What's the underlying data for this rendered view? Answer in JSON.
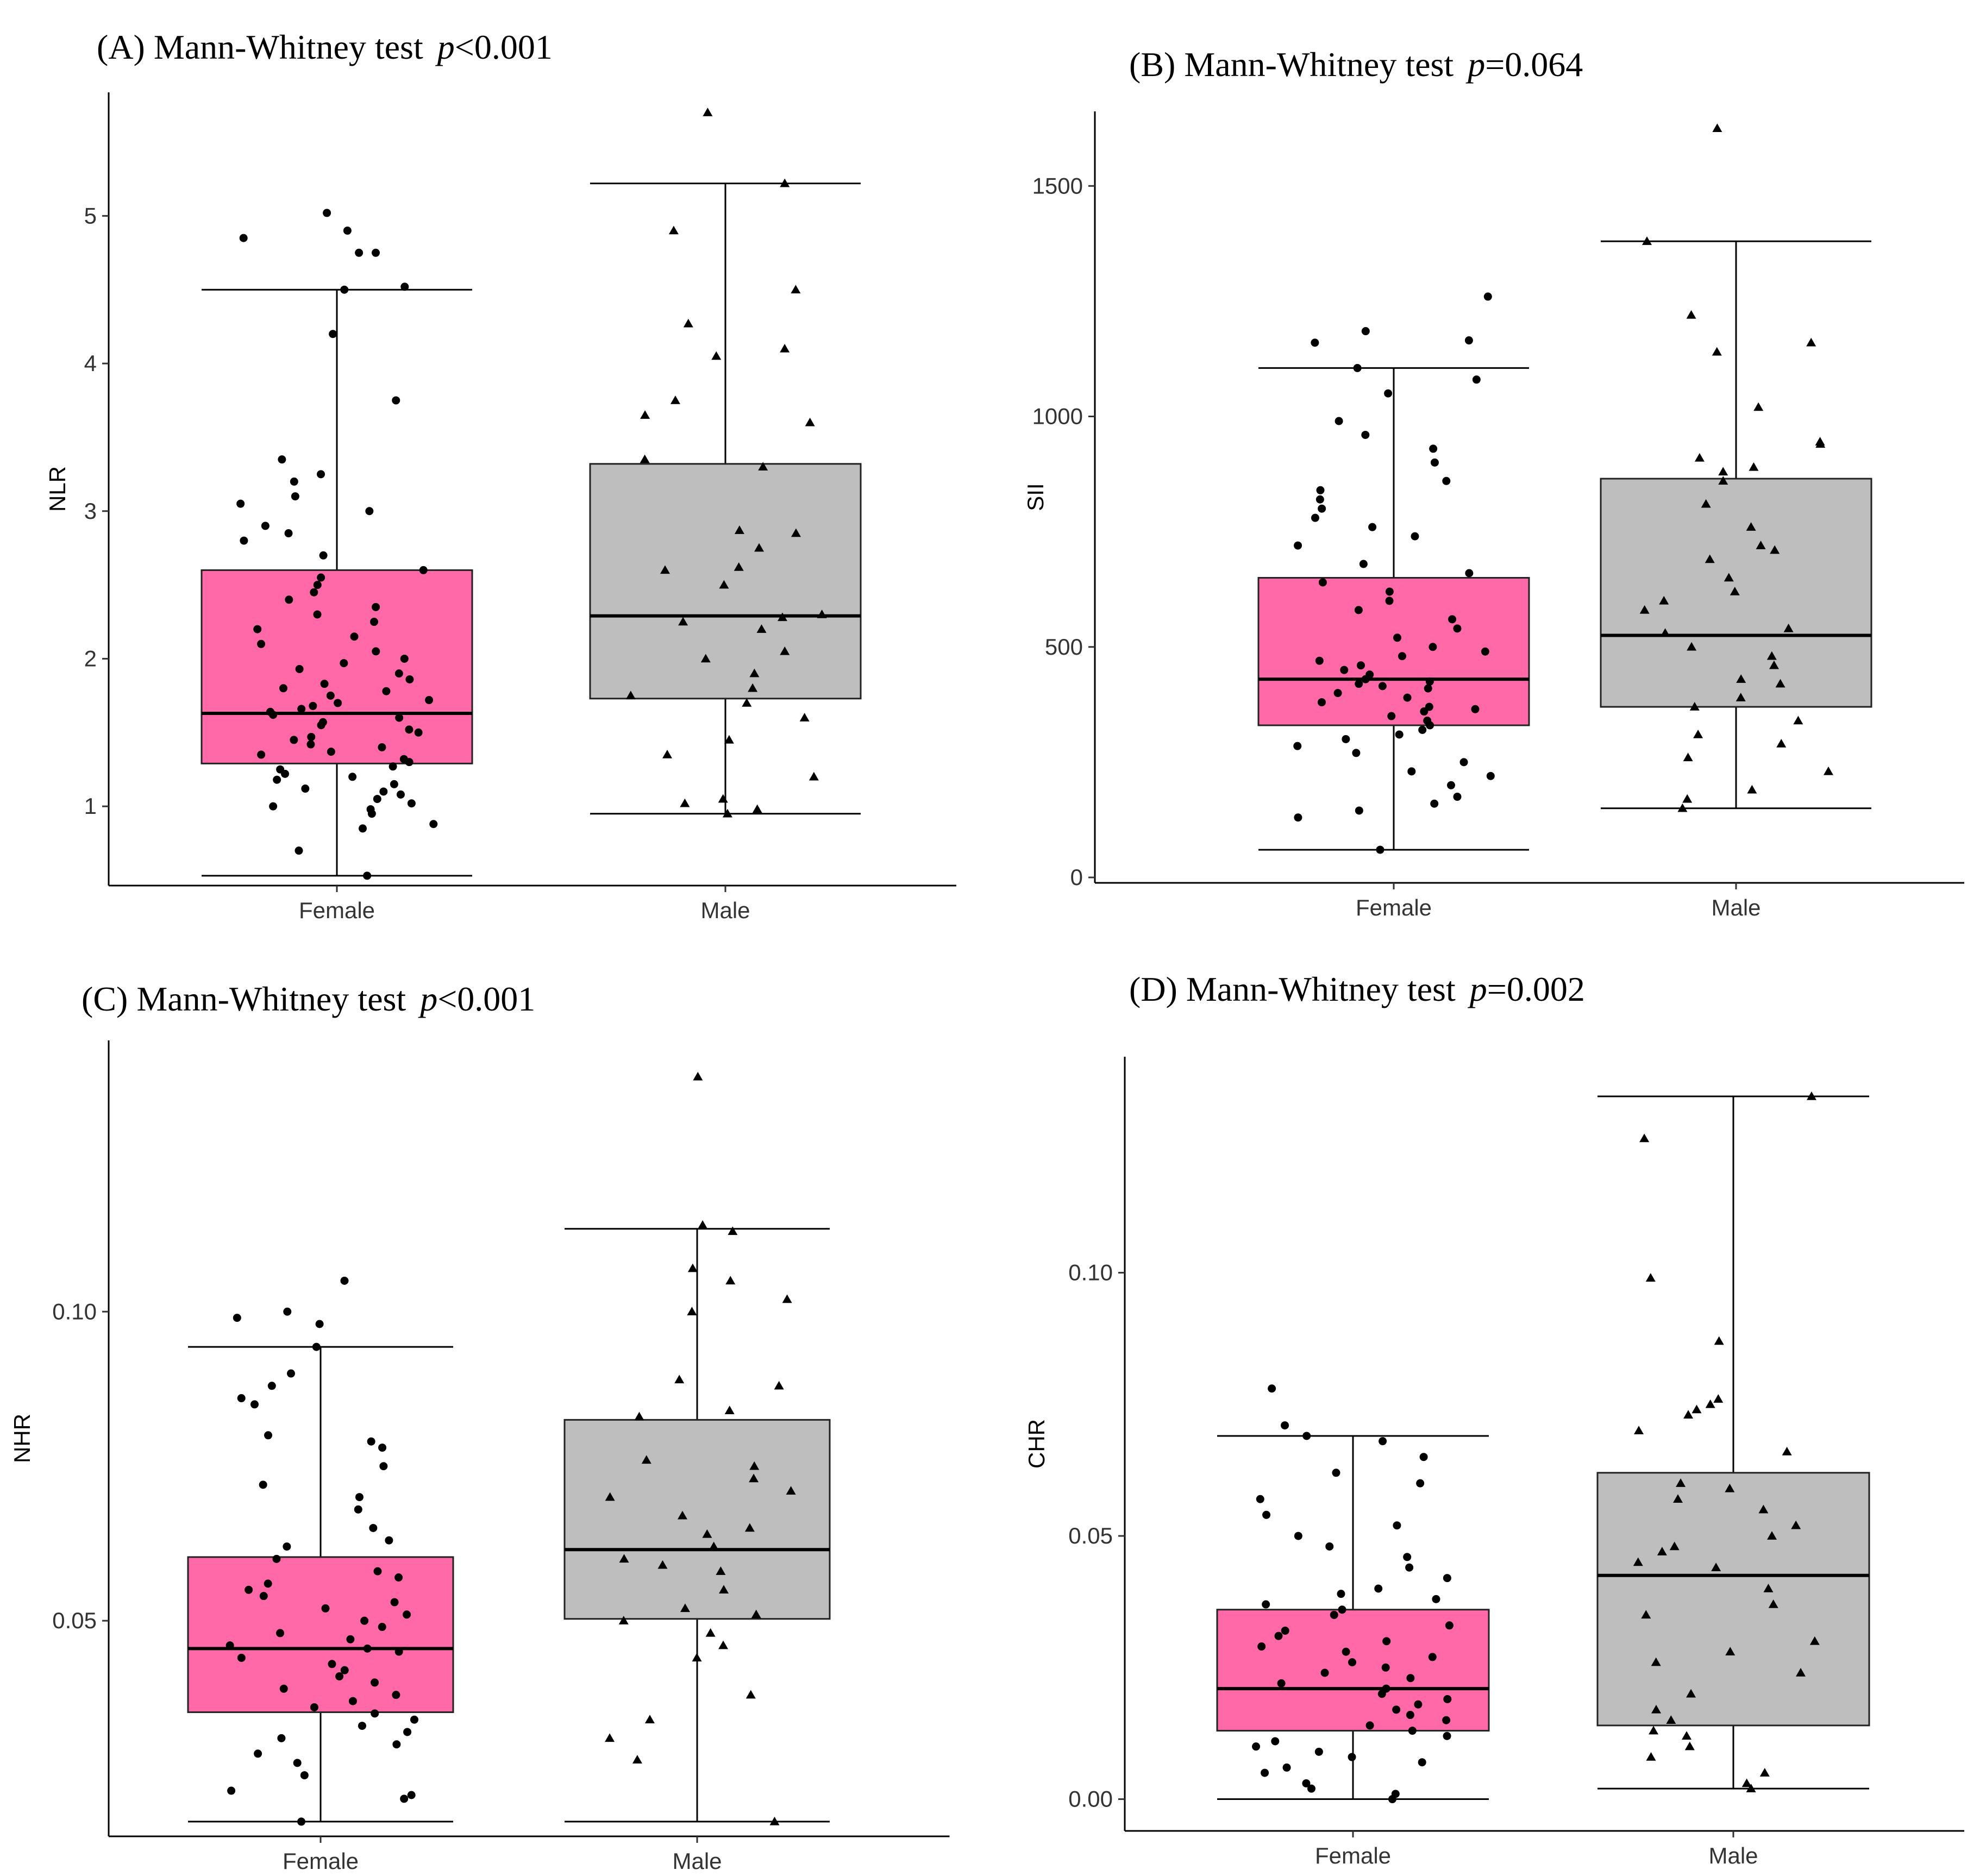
{
  "chart_data": [
    {
      "type": "box",
      "panel": "A",
      "title_prefix": "(A) Mann-Whitney test ",
      "p_symbol": "p",
      "p_text": "<0.001",
      "ylabel": "NLR",
      "ylim": [
        0.5,
        5.8
      ],
      "yticks": [
        1,
        2,
        3,
        4,
        5
      ],
      "categories": [
        "Female",
        "Male"
      ],
      "colors": [
        "#FF69A8",
        "#BEBEBE"
      ],
      "boxes": [
        {
          "name": "Female",
          "whisker_low": 0.53,
          "q1": 1.29,
          "median": 1.63,
          "q3": 2.6,
          "whisker_high": 4.5,
          "points": [
            0.53,
            0.7,
            0.85,
            0.88,
            0.95,
            0.98,
            1.0,
            1.02,
            1.05,
            1.08,
            1.1,
            1.12,
            1.15,
            1.18,
            1.2,
            1.22,
            1.25,
            1.27,
            1.3,
            1.32,
            1.35,
            1.37,
            1.4,
            1.42,
            1.45,
            1.47,
            1.5,
            1.52,
            1.55,
            1.57,
            1.6,
            1.62,
            1.64,
            1.66,
            1.68,
            1.7,
            1.72,
            1.75,
            1.78,
            1.8,
            1.83,
            1.86,
            1.9,
            1.93,
            1.97,
            2.0,
            2.05,
            2.1,
            2.15,
            2.2,
            2.25,
            2.3,
            2.35,
            2.4,
            2.45,
            2.5,
            2.55,
            2.6,
            2.7,
            2.8,
            2.85,
            2.9,
            3.0,
            3.05,
            3.1,
            3.2,
            3.25,
            3.35,
            3.75,
            4.2,
            4.5,
            4.52,
            4.75,
            4.75,
            4.85,
            4.9,
            5.02
          ],
          "marker": "circle"
        },
        {
          "name": "Male",
          "whisker_low": 0.95,
          "q1": 1.73,
          "median": 2.29,
          "q3": 3.32,
          "whisker_high": 5.22,
          "points": [
            0.95,
            0.98,
            1.02,
            1.05,
            1.2,
            1.35,
            1.45,
            1.6,
            1.7,
            1.75,
            1.8,
            1.9,
            2.0,
            2.05,
            2.2,
            2.25,
            2.28,
            2.3,
            2.5,
            2.6,
            2.62,
            2.75,
            2.85,
            2.87,
            3.3,
            3.35,
            3.6,
            3.65,
            3.75,
            4.05,
            4.1,
            4.27,
            4.5,
            4.9,
            5.22,
            5.7
          ],
          "marker": "triangle"
        }
      ]
    },
    {
      "type": "box",
      "panel": "B",
      "title_prefix": "(B) Mann-Whitney test ",
      "p_symbol": "p",
      "p_text": "=0.064",
      "ylabel": "SII",
      "ylim": [
        0,
        1650
      ],
      "yticks": [
        0,
        500,
        1000,
        1500
      ],
      "categories": [
        "Female",
        "Male"
      ],
      "colors": [
        "#FF69A8",
        "#BEBEBE"
      ],
      "boxes": [
        {
          "name": "Female",
          "whisker_low": 60,
          "q1": 330,
          "median": 430,
          "q3": 650,
          "whisker_high": 1105,
          "points": [
            60,
            130,
            145,
            160,
            175,
            200,
            220,
            230,
            250,
            270,
            285,
            300,
            310,
            320,
            330,
            340,
            350,
            360,
            365,
            370,
            380,
            390,
            400,
            410,
            415,
            420,
            425,
            430,
            440,
            450,
            460,
            470,
            480,
            490,
            500,
            520,
            540,
            560,
            580,
            600,
            620,
            640,
            660,
            680,
            720,
            740,
            760,
            780,
            800,
            820,
            840,
            860,
            900,
            930,
            960,
            990,
            1050,
            1080,
            1105,
            1160,
            1165,
            1185,
            1260
          ],
          "marker": "circle"
        },
        {
          "name": "Male",
          "whisker_low": 150,
          "q1": 370,
          "median": 525,
          "q3": 865,
          "whisker_high": 1380,
          "points": [
            150,
            170,
            190,
            230,
            260,
            290,
            310,
            340,
            370,
            390,
            420,
            430,
            460,
            480,
            500,
            530,
            540,
            580,
            600,
            620,
            650,
            690,
            710,
            720,
            760,
            810,
            860,
            880,
            890,
            910,
            940,
            945,
            1020,
            1140,
            1160,
            1220,
            1380,
            1625
          ],
          "marker": "triangle"
        }
      ]
    },
    {
      "type": "box",
      "panel": "C",
      "title_prefix": "(C) Mann-Whitney test ",
      "p_symbol": "p",
      "p_text": "<0.001",
      "ylabel": "NHR",
      "ylim": [
        0.016,
        0.143
      ],
      "yticks": [
        0.05,
        0.1
      ],
      "ytick_labels": [
        "0.05",
        "0.10"
      ],
      "categories": [
        "Female",
        "Male"
      ],
      "colors": [
        "#FF69A8",
        "#BEBEBE"
      ],
      "boxes": [
        {
          "name": "Female",
          "whisker_low": 0.0175,
          "q1": 0.0352,
          "median": 0.0455,
          "q3": 0.0603,
          "whisker_high": 0.0943,
          "points": [
            0.0175,
            0.0212,
            0.0218,
            0.0225,
            0.025,
            0.027,
            0.0285,
            0.03,
            0.031,
            0.032,
            0.033,
            0.034,
            0.035,
            0.036,
            0.037,
            0.038,
            0.039,
            0.04,
            0.041,
            0.042,
            0.043,
            0.044,
            0.045,
            0.0455,
            0.046,
            0.047,
            0.048,
            0.049,
            0.05,
            0.051,
            0.052,
            0.053,
            0.054,
            0.055,
            0.056,
            0.057,
            0.058,
            0.06,
            0.062,
            0.063,
            0.065,
            0.068,
            0.07,
            0.072,
            0.075,
            0.078,
            0.079,
            0.08,
            0.085,
            0.086,
            0.088,
            0.09,
            0.0943,
            0.098,
            0.099,
            0.1,
            0.105
          ],
          "marker": "circle"
        },
        {
          "name": "Male",
          "whisker_low": 0.0175,
          "q1": 0.0503,
          "median": 0.0615,
          "q3": 0.0825,
          "whisker_high": 0.1134,
          "points": [
            0.0175,
            0.0275,
            0.031,
            0.034,
            0.038,
            0.044,
            0.046,
            0.048,
            0.05,
            0.051,
            0.052,
            0.055,
            0.058,
            0.059,
            0.06,
            0.062,
            0.064,
            0.065,
            0.067,
            0.07,
            0.071,
            0.073,
            0.075,
            0.076,
            0.083,
            0.084,
            0.088,
            0.089,
            0.1,
            0.102,
            0.105,
            0.107,
            0.113,
            0.114,
            0.138
          ],
          "marker": "triangle"
        }
      ]
    },
    {
      "type": "box",
      "panel": "D",
      "title_prefix": "(D) Mann-Whitney test ",
      "p_symbol": "p",
      "p_text": "=0.002",
      "ylabel": "CHR",
      "ylim": [
        -0.005,
        0.14
      ],
      "yticks": [
        0.0,
        0.05,
        0.1
      ],
      "ytick_labels": [
        "0.00",
        "0.05",
        "0.10"
      ],
      "categories": [
        "Female",
        "Male"
      ],
      "colors": [
        "#FF69A8",
        "#BEBEBE"
      ],
      "boxes": [
        {
          "name": "Female",
          "whisker_low": 0.0,
          "q1": 0.013,
          "median": 0.021,
          "q3": 0.036,
          "whisker_high": 0.069,
          "points": [
            0.0,
            0.001,
            0.002,
            0.003,
            0.005,
            0.006,
            0.007,
            0.008,
            0.009,
            0.01,
            0.011,
            0.012,
            0.013,
            0.014,
            0.015,
            0.016,
            0.017,
            0.018,
            0.019,
            0.02,
            0.021,
            0.022,
            0.023,
            0.024,
            0.025,
            0.026,
            0.027,
            0.028,
            0.029,
            0.03,
            0.031,
            0.032,
            0.033,
            0.035,
            0.036,
            0.037,
            0.038,
            0.039,
            0.04,
            0.042,
            0.044,
            0.046,
            0.048,
            0.05,
            0.052,
            0.054,
            0.057,
            0.06,
            0.062,
            0.065,
            0.068,
            0.069,
            0.071,
            0.078
          ],
          "marker": "circle"
        },
        {
          "name": "Male",
          "whisker_low": 0.002,
          "q1": 0.014,
          "median": 0.0425,
          "q3": 0.062,
          "whisker_high": 0.1335,
          "points": [
            0.002,
            0.003,
            0.005,
            0.008,
            0.01,
            0.012,
            0.013,
            0.015,
            0.017,
            0.02,
            0.024,
            0.026,
            0.028,
            0.03,
            0.035,
            0.037,
            0.04,
            0.044,
            0.045,
            0.047,
            0.048,
            0.05,
            0.052,
            0.055,
            0.057,
            0.059,
            0.06,
            0.066,
            0.07,
            0.073,
            0.074,
            0.075,
            0.076,
            0.087,
            0.099,
            0.1255,
            0.1335
          ],
          "marker": "triangle"
        }
      ]
    }
  ]
}
